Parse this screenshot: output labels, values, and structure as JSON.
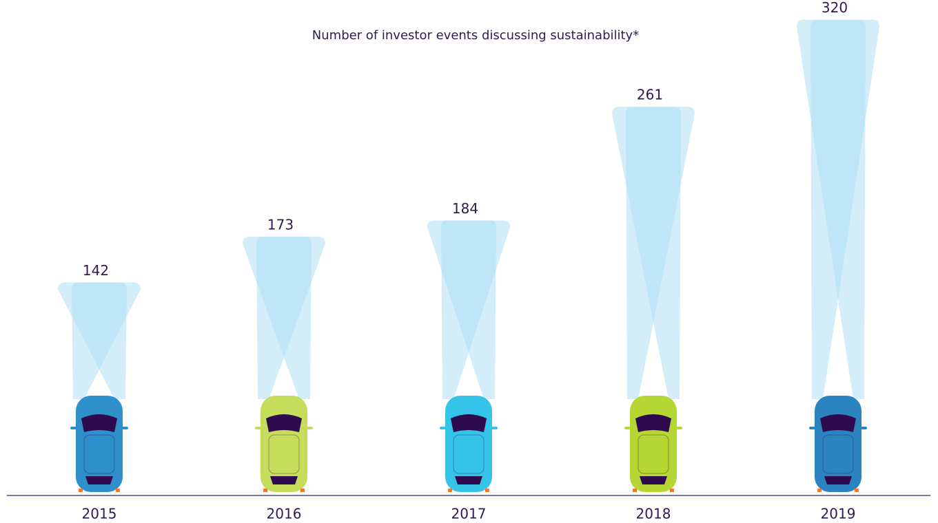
{
  "chart_data": {
    "type": "bar",
    "title": "Number of investor events discussing sustainability*",
    "categories": [
      "2015",
      "2016",
      "2017",
      "2018",
      "2019"
    ],
    "values": [
      142,
      173,
      184,
      261,
      320
    ],
    "colors": [
      "#2f8fcb",
      "#c6dd5c",
      "#36c3e8",
      "#b6d633",
      "#2b84bf"
    ],
    "beam_color": "#a9def3",
    "ylim": [
      0,
      338
    ]
  }
}
